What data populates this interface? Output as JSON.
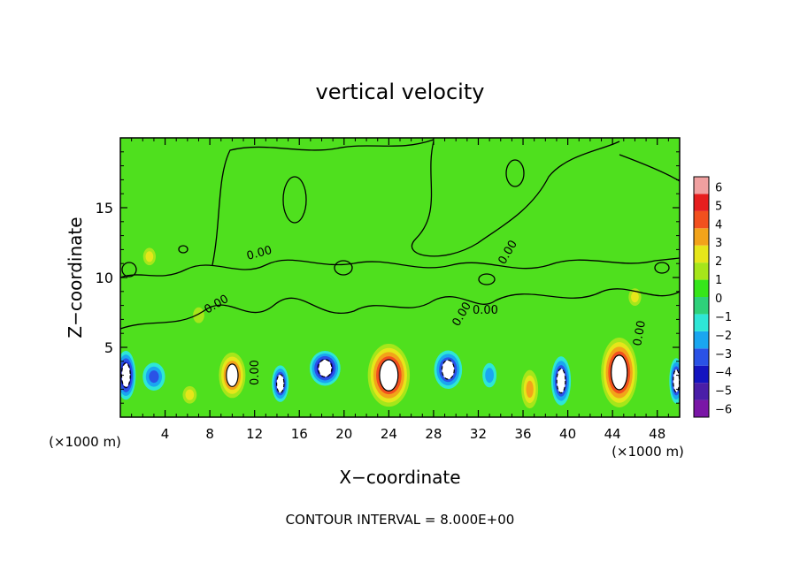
{
  "chart_data": {
    "type": "heatmap",
    "title": "vertical velocity",
    "xlabel": "X−coordinate",
    "ylabel": "Z−coordinate",
    "x_unit": "(×1000 m)",
    "y_unit": "(×1000 m)",
    "xlim": [
      0,
      50
    ],
    "ylim": [
      0,
      20
    ],
    "x_ticks": [
      4,
      8,
      12,
      16,
      20,
      24,
      28,
      32,
      36,
      40,
      44,
      48
    ],
    "y_ticks": [
      5,
      10,
      15
    ],
    "colorbar": {
      "ticks": [
        6,
        5,
        4,
        3,
        2,
        1,
        0,
        -1,
        -2,
        -3,
        -4,
        -5,
        -6
      ],
      "colors": [
        "#7a16a6",
        "#4a1ea8",
        "#1414c0",
        "#2a52e6",
        "#1aa6f0",
        "#2ee6d6",
        "#2ed17a",
        "#36e61a",
        "#a6e61a",
        "#e6e61a",
        "#f2a31a",
        "#f2501e",
        "#e61e1e",
        "#f0a0a0"
      ]
    },
    "contour_labels": [
      "0.00",
      "0.00",
      "0.00",
      "0.00",
      "0.00",
      "0.00",
      "0.00"
    ],
    "cells": [
      {
        "x": 0.5,
        "z": 3.0,
        "w": 1.4,
        "h": 2.8,
        "peak": -12
      },
      {
        "x": 3.0,
        "z": 2.9,
        "w": 1.6,
        "h": 1.6,
        "peak": -5
      },
      {
        "x": 6.2,
        "z": 1.6,
        "w": 1.0,
        "h": 1.0,
        "peak": 3
      },
      {
        "x": 10.0,
        "z": 3.0,
        "w": 1.9,
        "h": 2.6,
        "peak": 10
      },
      {
        "x": 14.3,
        "z": 2.4,
        "w": 1.2,
        "h": 2.1,
        "peak": -10
      },
      {
        "x": 18.3,
        "z": 3.5,
        "w": 2.2,
        "h": 2.0,
        "peak": -11
      },
      {
        "x": 24.0,
        "z": 3.0,
        "w": 3.0,
        "h": 3.6,
        "peak": 15
      },
      {
        "x": 29.3,
        "z": 3.4,
        "w": 2.0,
        "h": 2.2,
        "peak": -9
      },
      {
        "x": 33.0,
        "z": 3.0,
        "w": 1.0,
        "h": 1.4,
        "peak": -3
      },
      {
        "x": 36.6,
        "z": 2.0,
        "w": 1.2,
        "h": 2.2,
        "peak": 5
      },
      {
        "x": 39.4,
        "z": 2.6,
        "w": 1.4,
        "h": 2.8,
        "peak": -10
      },
      {
        "x": 44.6,
        "z": 3.2,
        "w": 2.6,
        "h": 4.0,
        "peak": 14
      },
      {
        "x": 49.7,
        "z": 2.6,
        "w": 1.0,
        "h": 2.6,
        "peak": -10
      },
      {
        "x": 2.6,
        "z": 11.5,
        "w": 0.9,
        "h": 1.0,
        "peak": 3
      },
      {
        "x": 7.0,
        "z": 7.3,
        "w": 0.8,
        "h": 0.9,
        "peak": 2
      },
      {
        "x": 46.0,
        "z": 8.6,
        "w": 0.9,
        "h": 1.0,
        "peak": 3
      }
    ]
  },
  "footer": {
    "contour_interval": "CONTOUR INTERVAL = 8.000E+00"
  }
}
